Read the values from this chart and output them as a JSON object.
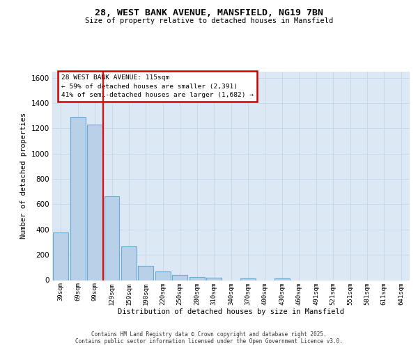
{
  "title_line1": "28, WEST BANK AVENUE, MANSFIELD, NG19 7BN",
  "title_line2": "Size of property relative to detached houses in Mansfield",
  "xlabel": "Distribution of detached houses by size in Mansfield",
  "ylabel": "Number of detached properties",
  "categories": [
    "39sqm",
    "69sqm",
    "99sqm",
    "129sqm",
    "159sqm",
    "190sqm",
    "220sqm",
    "250sqm",
    "280sqm",
    "310sqm",
    "340sqm",
    "370sqm",
    "400sqm",
    "430sqm",
    "460sqm",
    "491sqm",
    "521sqm",
    "551sqm",
    "581sqm",
    "611sqm",
    "641sqm"
  ],
  "values": [
    375,
    1290,
    1230,
    665,
    265,
    115,
    70,
    40,
    25,
    20,
    0,
    15,
    0,
    15,
    0,
    0,
    0,
    0,
    0,
    0,
    0
  ],
  "bar_color": "#b8d0e8",
  "bar_edge_color": "#6aaad4",
  "grid_color": "#c8d8ea",
  "bg_color": "#dce9f5",
  "red_line_x": 2.5,
  "annotation_line1": "28 WEST BANK AVENUE: 115sqm",
  "annotation_line2": "← 59% of detached houses are smaller (2,391)",
  "annotation_line3": "41% of semi-detached houses are larger (1,682) →",
  "annotation_box_color": "#ffffff",
  "annotation_border_color": "#cc0000",
  "ylim_max": 1650,
  "yticks": [
    0,
    200,
    400,
    600,
    800,
    1000,
    1200,
    1400,
    1600
  ],
  "footer_text": "Contains HM Land Registry data © Crown copyright and database right 2025.\nContains public sector information licensed under the Open Government Licence v3.0."
}
